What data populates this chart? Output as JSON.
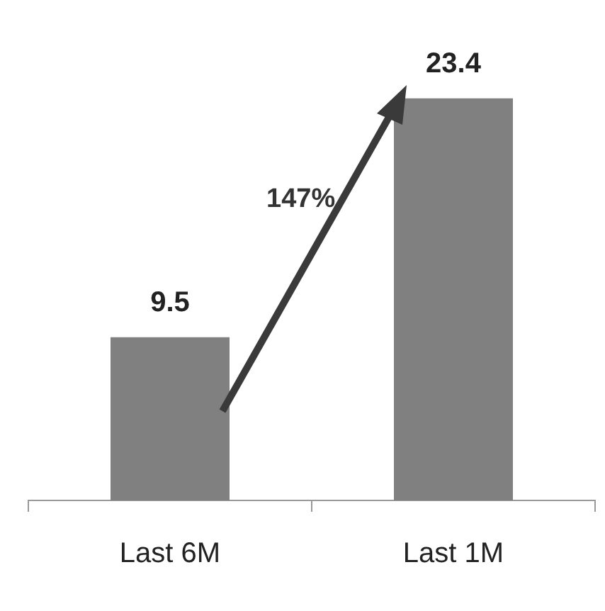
{
  "chart_data": {
    "type": "bar",
    "categories": [
      "Last 6M",
      "Last 1M"
    ],
    "values": [
      9.5,
      23.4
    ],
    "color": "#808080",
    "data_labels": true,
    "legend": false,
    "grid": false,
    "annotations": [
      "147%"
    ]
  }
}
